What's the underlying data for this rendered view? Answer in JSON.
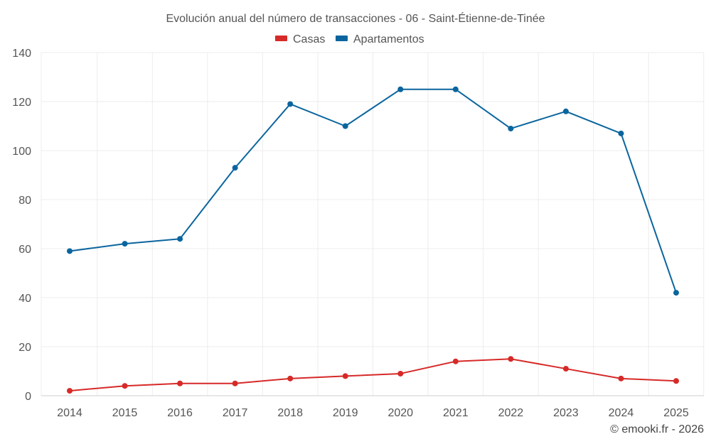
{
  "chart_data": {
    "type": "line",
    "title": "Evolución anual del número de transacciones - 06 - Saint-Étienne-de-Tinée",
    "categories": [
      "2014",
      "2015",
      "2016",
      "2017",
      "2018",
      "2019",
      "2020",
      "2021",
      "2022",
      "2023",
      "2024",
      "2025"
    ],
    "series": [
      {
        "name": "Casas",
        "color": "#d62a28",
        "values": [
          2,
          4,
          5,
          5,
          7,
          8,
          9,
          14,
          15,
          11,
          7,
          6
        ]
      },
      {
        "name": "Apartamentos",
        "color": "#0a659e",
        "values": [
          59,
          62,
          64,
          93,
          119,
          110,
          125,
          125,
          109,
          116,
          107,
          42
        ]
      }
    ],
    "ylim": [
      0,
      140
    ],
    "yticks": [
      0,
      20,
      40,
      60,
      80,
      100,
      120,
      140
    ],
    "xlabel": "",
    "ylabel": "",
    "grid": true,
    "legend": "top-center"
  },
  "credit": "© emooki.fr - 2026"
}
